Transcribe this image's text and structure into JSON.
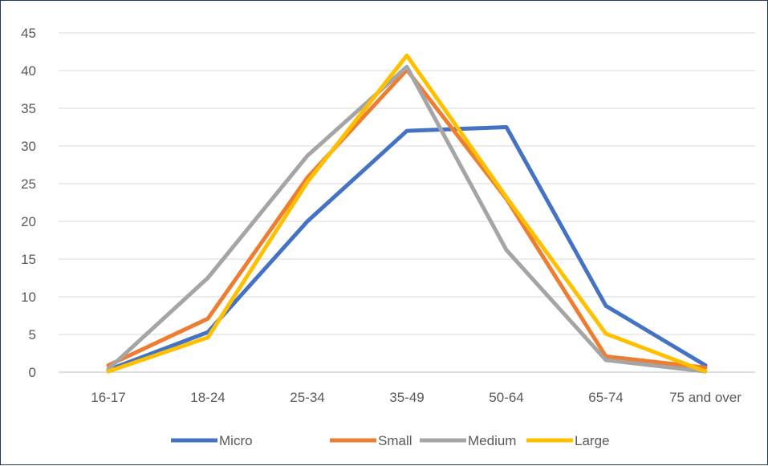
{
  "chart_data": {
    "type": "line",
    "title": "",
    "xlabel": "",
    "ylabel": "",
    "categories": [
      "16-17",
      "18-24",
      "25-34",
      "35-49",
      "50-64",
      "65-74",
      "75 and over"
    ],
    "ylim": [
      0,
      45
    ],
    "yticks": [
      0,
      5,
      10,
      15,
      20,
      25,
      30,
      35,
      40,
      45
    ],
    "grid": true,
    "legend_position": "bottom",
    "series": [
      {
        "name": "Micro",
        "color": "#4472c4",
        "values": [
          0.3,
          5.3,
          20.0,
          32.0,
          32.5,
          8.8,
          0.9
        ]
      },
      {
        "name": "Small",
        "color": "#ed7d31",
        "values": [
          0.9,
          7.1,
          25.8,
          40.1,
          23.0,
          2.1,
          0.6
        ]
      },
      {
        "name": "Medium",
        "color": "#a5a5a5",
        "values": [
          0.4,
          12.5,
          28.7,
          40.5,
          16.2,
          1.6,
          0.1
        ]
      },
      {
        "name": "Large",
        "color": "#ffc000",
        "values": [
          0.1,
          4.6,
          25.2,
          42.0,
          23.2,
          5.1,
          0.1
        ]
      }
    ]
  }
}
